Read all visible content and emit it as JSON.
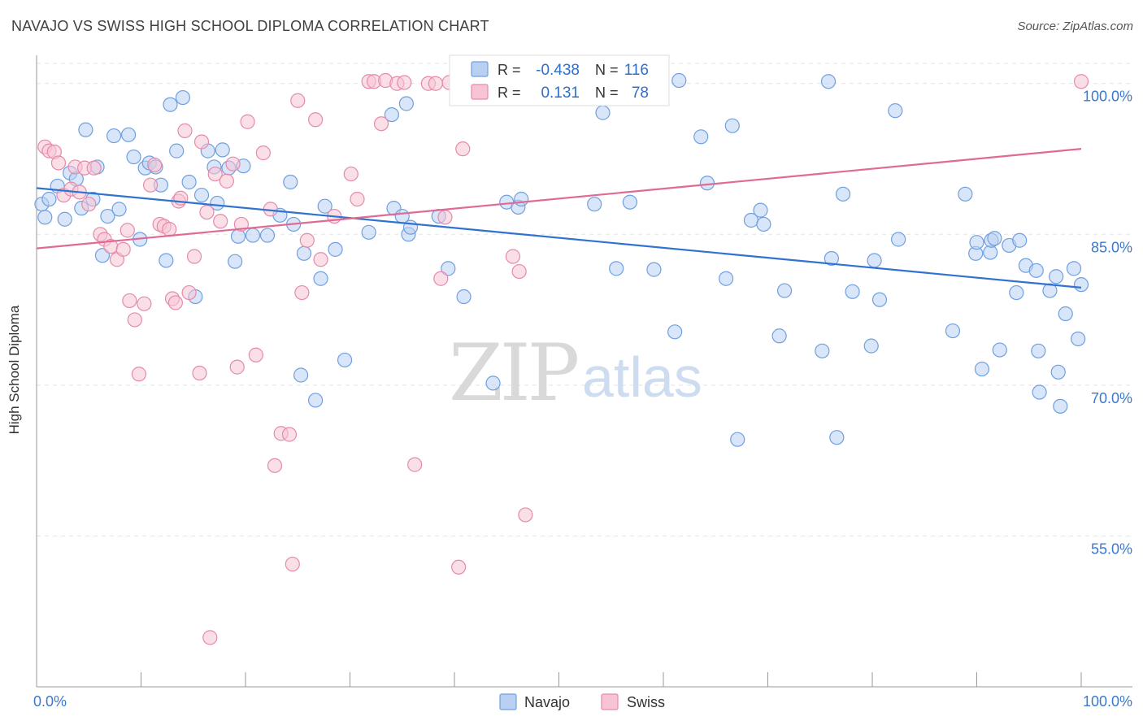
{
  "title": "NAVAJO VS SWISS HIGH SCHOOL DIPLOMA CORRELATION CHART",
  "source": "Source: ZipAtlas.com",
  "watermark": {
    "zip": "ZIP",
    "atlas": "atlas"
  },
  "legend_top": {
    "rows": [
      {
        "r_label": "R =",
        "r_value": "-0.438",
        "n_label": "N =",
        "n_value": "116",
        "color": "#6fa0df",
        "fill": "#b9d0f2"
      },
      {
        "r_label": "R =",
        "r_value": "0.131",
        "n_label": "N =",
        "n_value": "78",
        "color": "#e58aaa",
        "fill": "#f8c4d4"
      }
    ]
  },
  "legend_bottom": [
    {
      "label": "Navajo",
      "color": "#6fa0df",
      "fill": "#b9d0f2"
    },
    {
      "label": "Swiss",
      "color": "#e58aaa",
      "fill": "#f8c4d4"
    }
  ],
  "chart_data": {
    "type": "scatter",
    "title": "NAVAJO VS SWISS HIGH SCHOOL DIPLOMA CORRELATION CHART",
    "xlabel": "",
    "ylabel": "High School Diploma",
    "xlim": [
      0,
      100
    ],
    "ylim": [
      40,
      102
    ],
    "x_tick_labels": [
      "0.0%",
      "100.0%"
    ],
    "y_ticks": [
      55,
      70,
      85,
      100
    ],
    "y_tick_labels": [
      "55.0%",
      "70.0%",
      "85.0%",
      "100.0%"
    ],
    "grid": true,
    "legend_position": "top-center",
    "series": [
      {
        "name": "Navajo",
        "color": "#6fa0df",
        "fill": "#b9d0f2",
        "trend": {
          "x": [
            0,
            100
          ],
          "y": [
            89.6,
            79.7
          ],
          "color": "#2f72d0"
        },
        "points": [
          [
            0.5,
            88.0
          ],
          [
            0.8,
            86.7
          ],
          [
            1.2,
            88.5
          ],
          [
            2.0,
            89.8
          ],
          [
            2.7,
            86.5
          ],
          [
            3.2,
            91.1
          ],
          [
            3.8,
            90.5
          ],
          [
            4.3,
            87.6
          ],
          [
            4.7,
            95.4
          ],
          [
            5.4,
            88.5
          ],
          [
            5.8,
            91.7
          ],
          [
            6.3,
            82.9
          ],
          [
            6.8,
            86.8
          ],
          [
            7.4,
            94.8
          ],
          [
            7.9,
            87.5
          ],
          [
            8.8,
            94.9
          ],
          [
            9.3,
            92.7
          ],
          [
            9.9,
            84.5
          ],
          [
            10.4,
            91.6
          ],
          [
            10.8,
            92.1
          ],
          [
            11.4,
            91.7
          ],
          [
            11.9,
            89.9
          ],
          [
            12.4,
            82.4
          ],
          [
            12.8,
            97.9
          ],
          [
            13.4,
            93.3
          ],
          [
            14.0,
            98.6
          ],
          [
            14.6,
            90.2
          ],
          [
            15.2,
            78.8
          ],
          [
            15.8,
            88.9
          ],
          [
            16.4,
            93.3
          ],
          [
            17.0,
            91.7
          ],
          [
            17.3,
            88.1
          ],
          [
            17.8,
            93.4
          ],
          [
            18.4,
            91.6
          ],
          [
            19.0,
            82.3
          ],
          [
            19.3,
            84.8
          ],
          [
            19.8,
            91.8
          ],
          [
            20.7,
            84.9
          ],
          [
            22.1,
            84.9
          ],
          [
            23.3,
            86.9
          ],
          [
            24.3,
            90.2
          ],
          [
            24.6,
            86.0
          ],
          [
            25.3,
            71.0
          ],
          [
            25.6,
            83.1
          ],
          [
            26.7,
            68.5
          ],
          [
            27.2,
            80.6
          ],
          [
            27.6,
            87.8
          ],
          [
            28.6,
            83.5
          ],
          [
            29.5,
            72.5
          ],
          [
            31.8,
            85.2
          ],
          [
            34.0,
            96.9
          ],
          [
            34.2,
            87.6
          ],
          [
            35.0,
            86.8
          ],
          [
            35.4,
            98.0
          ],
          [
            35.6,
            85.0
          ],
          [
            35.8,
            85.7
          ],
          [
            38.5,
            86.8
          ],
          [
            39.4,
            81.6
          ],
          [
            40.9,
            78.8
          ],
          [
            43.7,
            70.2
          ],
          [
            45.0,
            88.2
          ],
          [
            46.1,
            87.7
          ],
          [
            46.4,
            88.5
          ],
          [
            53.4,
            88.0
          ],
          [
            54.2,
            97.1
          ],
          [
            55.5,
            81.6
          ],
          [
            56.8,
            88.2
          ],
          [
            58.4,
            100.3
          ],
          [
            59.1,
            81.5
          ],
          [
            61.1,
            75.3
          ],
          [
            61.5,
            100.3
          ],
          [
            63.6,
            94.7
          ],
          [
            64.2,
            90.1
          ],
          [
            66.0,
            80.6
          ],
          [
            66.6,
            95.8
          ],
          [
            67.1,
            64.6
          ],
          [
            68.4,
            86.4
          ],
          [
            69.3,
            87.4
          ],
          [
            69.6,
            86.0
          ],
          [
            71.1,
            74.9
          ],
          [
            71.6,
            79.4
          ],
          [
            75.2,
            73.4
          ],
          [
            75.8,
            100.2
          ],
          [
            76.1,
            82.6
          ],
          [
            76.6,
            64.8
          ],
          [
            77.2,
            89.0
          ],
          [
            78.1,
            79.3
          ],
          [
            79.9,
            73.9
          ],
          [
            80.2,
            82.4
          ],
          [
            80.7,
            78.5
          ],
          [
            82.2,
            97.3
          ],
          [
            82.5,
            84.5
          ],
          [
            87.7,
            75.4
          ],
          [
            88.9,
            89.0
          ],
          [
            89.9,
            83.1
          ],
          [
            90.0,
            84.2
          ],
          [
            90.5,
            71.6
          ],
          [
            91.3,
            83.2
          ],
          [
            91.4,
            84.4
          ],
          [
            91.7,
            84.6
          ],
          [
            92.2,
            73.5
          ],
          [
            93.1,
            83.9
          ],
          [
            93.8,
            79.2
          ],
          [
            94.1,
            84.4
          ],
          [
            94.7,
            81.9
          ],
          [
            95.7,
            81.4
          ],
          [
            95.9,
            73.4
          ],
          [
            96.0,
            69.3
          ],
          [
            97.0,
            79.4
          ],
          [
            97.6,
            80.8
          ],
          [
            97.8,
            71.3
          ],
          [
            98.0,
            67.9
          ],
          [
            98.5,
            77.1
          ],
          [
            99.3,
            81.6
          ],
          [
            99.7,
            74.6
          ],
          [
            100.0,
            80.0
          ]
        ]
      },
      {
        "name": "Swiss",
        "color": "#e58aaa",
        "fill": "#f8c4d4",
        "trend": {
          "x": [
            0,
            100
          ],
          "y": [
            83.6,
            93.5
          ],
          "color": "#e06a95"
        },
        "points": [
          [
            0.8,
            93.7
          ],
          [
            1.2,
            93.3
          ],
          [
            1.7,
            93.2
          ],
          [
            2.1,
            92.1
          ],
          [
            2.6,
            88.9
          ],
          [
            3.3,
            89.5
          ],
          [
            3.7,
            91.7
          ],
          [
            4.1,
            89.2
          ],
          [
            4.6,
            91.6
          ],
          [
            5.0,
            88.0
          ],
          [
            5.5,
            91.6
          ],
          [
            6.1,
            85.0
          ],
          [
            6.5,
            84.5
          ],
          [
            7.1,
            83.8
          ],
          [
            7.7,
            82.5
          ],
          [
            8.3,
            83.5
          ],
          [
            8.7,
            85.4
          ],
          [
            8.9,
            78.4
          ],
          [
            9.4,
            76.5
          ],
          [
            9.8,
            71.1
          ],
          [
            10.3,
            78.1
          ],
          [
            10.9,
            89.9
          ],
          [
            11.3,
            91.9
          ],
          [
            11.8,
            86.0
          ],
          [
            12.2,
            85.8
          ],
          [
            12.7,
            85.5
          ],
          [
            13.0,
            78.6
          ],
          [
            13.3,
            78.2
          ],
          [
            13.6,
            88.3
          ],
          [
            13.8,
            88.6
          ],
          [
            14.2,
            95.3
          ],
          [
            14.6,
            79.2
          ],
          [
            15.1,
            82.8
          ],
          [
            15.6,
            71.2
          ],
          [
            15.8,
            94.2
          ],
          [
            16.3,
            87.2
          ],
          [
            16.6,
            44.9
          ],
          [
            17.1,
            91.0
          ],
          [
            17.6,
            86.3
          ],
          [
            18.2,
            90.3
          ],
          [
            18.8,
            92.0
          ],
          [
            19.2,
            71.8
          ],
          [
            19.6,
            86.0
          ],
          [
            20.2,
            96.2
          ],
          [
            21.0,
            73.0
          ],
          [
            21.7,
            93.1
          ],
          [
            22.4,
            87.5
          ],
          [
            22.8,
            62.0
          ],
          [
            23.4,
            65.2
          ],
          [
            24.2,
            65.1
          ],
          [
            24.5,
            52.2
          ],
          [
            25.0,
            98.3
          ],
          [
            25.4,
            79.2
          ],
          [
            25.9,
            84.4
          ],
          [
            26.7,
            96.4
          ],
          [
            27.2,
            82.5
          ],
          [
            28.5,
            86.8
          ],
          [
            30.1,
            91.0
          ],
          [
            30.7,
            88.5
          ],
          [
            31.8,
            100.2
          ],
          [
            32.3,
            100.2
          ],
          [
            33.0,
            96.0
          ],
          [
            33.4,
            100.3
          ],
          [
            34.5,
            100.0
          ],
          [
            35.2,
            100.1
          ],
          [
            36.2,
            62.1
          ],
          [
            37.5,
            100.0
          ],
          [
            38.2,
            100.0
          ],
          [
            38.7,
            80.6
          ],
          [
            39.1,
            86.7
          ],
          [
            39.5,
            100.1
          ],
          [
            40.4,
            51.9
          ],
          [
            40.8,
            93.5
          ],
          [
            42.9,
            100.1
          ],
          [
            45.6,
            82.8
          ],
          [
            46.2,
            81.3
          ],
          [
            46.8,
            57.1
          ],
          [
            100.0,
            100.2
          ]
        ]
      }
    ]
  }
}
